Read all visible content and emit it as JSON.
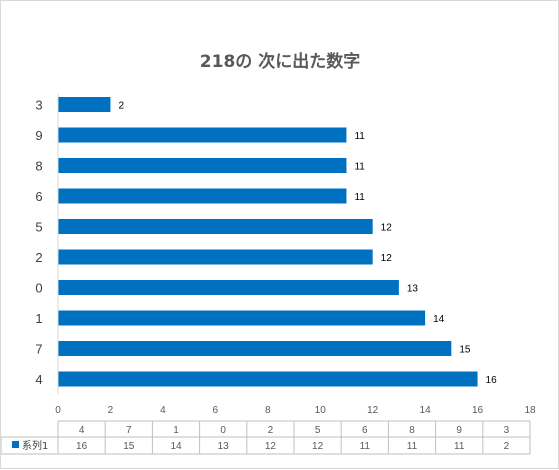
{
  "chart_data": {
    "type": "bar",
    "orientation": "horizontal",
    "title": "218の 次に出た数字",
    "categories": [
      "4",
      "7",
      "1",
      "0",
      "2",
      "5",
      "6",
      "8",
      "9",
      "3"
    ],
    "series": [
      {
        "name": "系列1",
        "values": [
          16,
          15,
          14,
          13,
          12,
          12,
          11,
          11,
          11,
          2
        ]
      }
    ],
    "xlim": [
      0,
      18
    ],
    "xticks": [
      0,
      2,
      4,
      6,
      8,
      10,
      12,
      14,
      16,
      18
    ],
    "grid": false,
    "data_labels": true,
    "data_table": true,
    "color": "#0070c0"
  }
}
